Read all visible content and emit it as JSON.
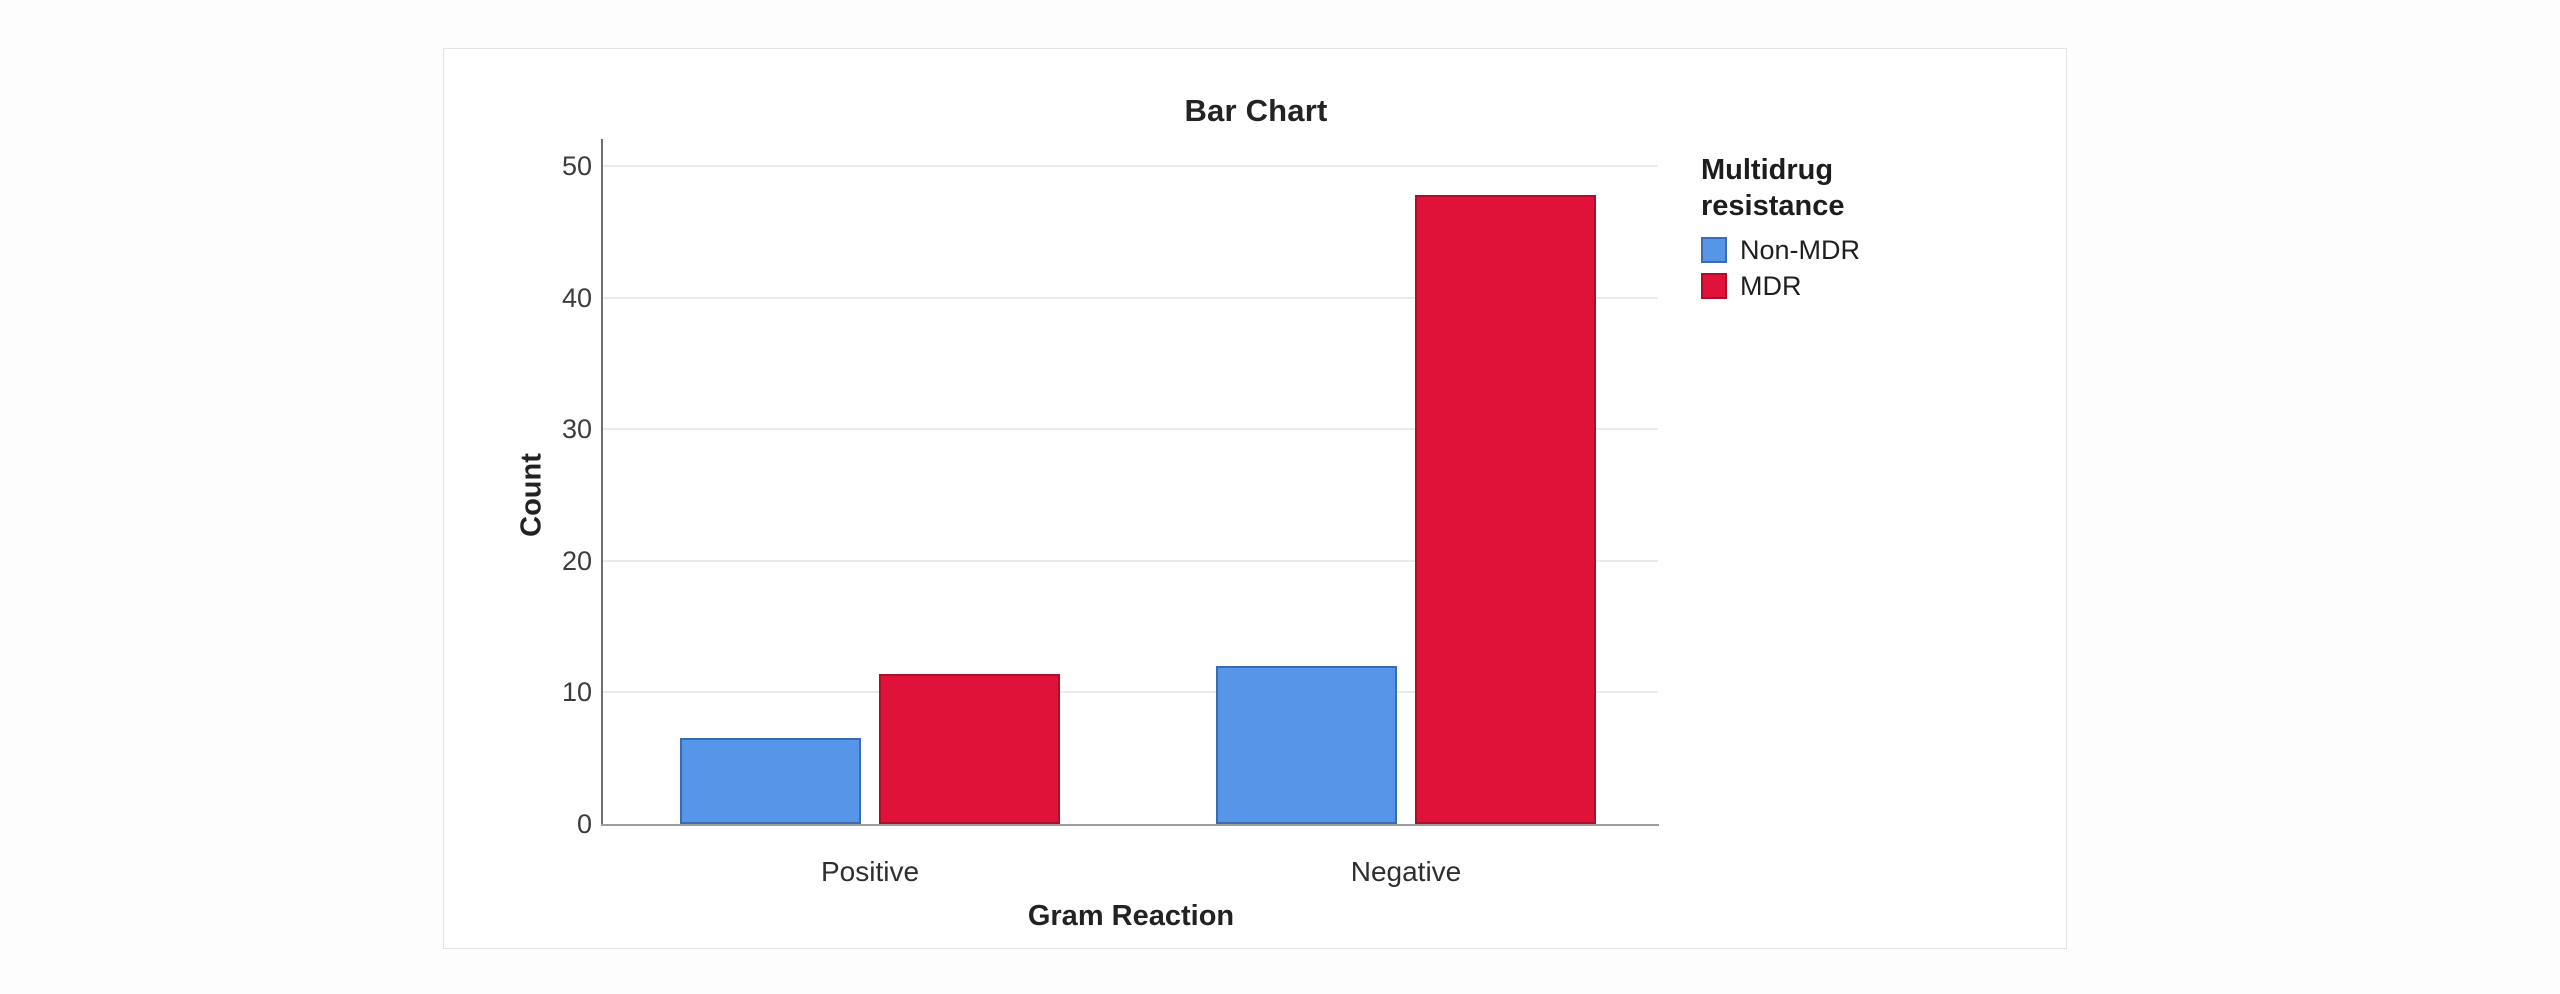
{
  "page": {
    "background": "#fdfdfe",
    "card_background": "#ffffff",
    "card_border": "#e3e3e7"
  },
  "chart_data": {
    "type": "bar",
    "title": "Bar Chart",
    "xlabel": "Gram Reaction",
    "ylabel": "Count",
    "categories": [
      "Positive",
      "Negative"
    ],
    "series": [
      {
        "name": "Non-MDR",
        "values": [
          6.5,
          12.0
        ],
        "fill": "#5795E8",
        "stroke": "#3A6BB4"
      },
      {
        "name": "MDR",
        "values": [
          11.4,
          47.8
        ],
        "fill": "#E1123A",
        "stroke": "#AF0D2C"
      }
    ],
    "ylim": [
      0,
      50
    ],
    "yticks": [
      0,
      10,
      20,
      30,
      40,
      50
    ],
    "grid": "horizontal",
    "legend": {
      "title": "Multidrug resistance",
      "position": "right"
    },
    "colors": {
      "grid": "#ebebeb",
      "y_axis": "#6f6f6f",
      "x_axis": "#9c9c9c",
      "text": "#2e2e2e"
    }
  }
}
